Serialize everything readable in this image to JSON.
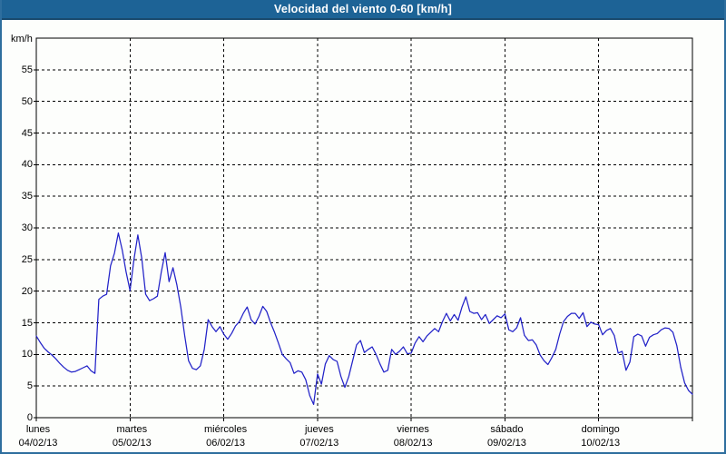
{
  "window": {
    "title": "Velocidad del viento 0-60 [km/h]"
  },
  "colors": {
    "title_bar": "#1D6396",
    "title_text": "#FFFFFF",
    "frame_border": "#2E6E9E",
    "line": "#2222C8",
    "grid": "#000000",
    "background": "#FDFEFC"
  },
  "chart_data": {
    "type": "line",
    "title": "Velocidad del viento 0-60 [km/h]",
    "ylabel": "km/h",
    "xlabel": "",
    "ylim": [
      0,
      60
    ],
    "yticks": [
      0,
      5,
      10,
      15,
      20,
      25,
      30,
      35,
      40,
      45,
      50,
      55
    ],
    "grid": true,
    "legend": "none",
    "x_unit": "hourly samples, 7 days (Mon 04/02/13 00:00 - Mon 11/02/13 00:00)",
    "days": [
      {
        "name": "lunes",
        "date": "04/02/13"
      },
      {
        "name": "martes",
        "date": "05/02/13"
      },
      {
        "name": "miércoles",
        "date": "06/02/13"
      },
      {
        "name": "jueves",
        "date": "07/02/13"
      },
      {
        "name": "viernes",
        "date": "08/02/13"
      },
      {
        "name": "sábado",
        "date": "09/02/13"
      },
      {
        "name": "domingo",
        "date": "10/02/13"
      }
    ],
    "series": [
      {
        "name": "Velocidad del viento",
        "values": [
          12.9,
          11.9,
          11.0,
          10.4,
          9.9,
          9.3,
          8.6,
          8.0,
          7.5,
          7.2,
          7.3,
          7.6,
          7.9,
          8.2,
          7.4,
          7.0,
          18.7,
          19.2,
          19.5,
          24.0,
          26.0,
          29.2,
          26.5,
          23.0,
          20.1,
          25.0,
          28.9,
          25.2,
          19.5,
          18.5,
          18.8,
          19.2,
          23.0,
          26.1,
          21.5,
          23.7,
          21.0,
          17.5,
          13.0,
          9.0,
          7.8,
          7.6,
          8.2,
          10.8,
          15.5,
          14.4,
          13.6,
          14.4,
          13.2,
          12.4,
          13.3,
          14.5,
          15.2,
          16.5,
          17.5,
          15.5,
          14.8,
          16.0,
          17.6,
          16.8,
          15.0,
          13.5,
          11.8,
          10.0,
          9.3,
          8.7,
          7.0,
          7.4,
          7.2,
          6.0,
          3.5,
          2.1,
          6.9,
          5.3,
          8.5,
          9.8,
          9.2,
          8.9,
          6.5,
          4.8,
          6.5,
          9.0,
          11.5,
          12.2,
          10.3,
          10.8,
          11.2,
          10.0,
          8.5,
          7.2,
          7.5,
          10.8,
          10.0,
          10.5,
          11.2,
          10.1,
          10.2,
          11.8,
          12.8,
          12.0,
          12.9,
          13.5,
          14.1,
          13.6,
          15.2,
          16.5,
          15.3,
          16.3,
          15.4,
          17.5,
          19.1,
          16.8,
          16.5,
          16.6,
          15.5,
          16.3,
          14.9,
          15.5,
          16.1,
          15.8,
          16.4,
          13.9,
          13.6,
          14.2,
          15.8,
          13.0,
          12.2,
          12.3,
          11.5,
          9.9,
          9.0,
          8.4,
          9.5,
          10.8,
          13.2,
          15.2,
          16.0,
          16.5,
          16.5,
          15.7,
          16.6,
          14.4,
          15.1,
          14.8,
          14.7,
          13.1,
          13.8,
          14.1,
          13.0,
          10.2,
          10.5,
          7.5,
          8.8,
          12.8,
          13.2,
          12.9,
          11.3,
          12.7,
          13.1,
          13.3,
          13.9,
          14.2,
          14.1,
          13.5,
          11.4,
          8.0,
          5.5,
          4.3,
          3.7
        ]
      }
    ]
  }
}
